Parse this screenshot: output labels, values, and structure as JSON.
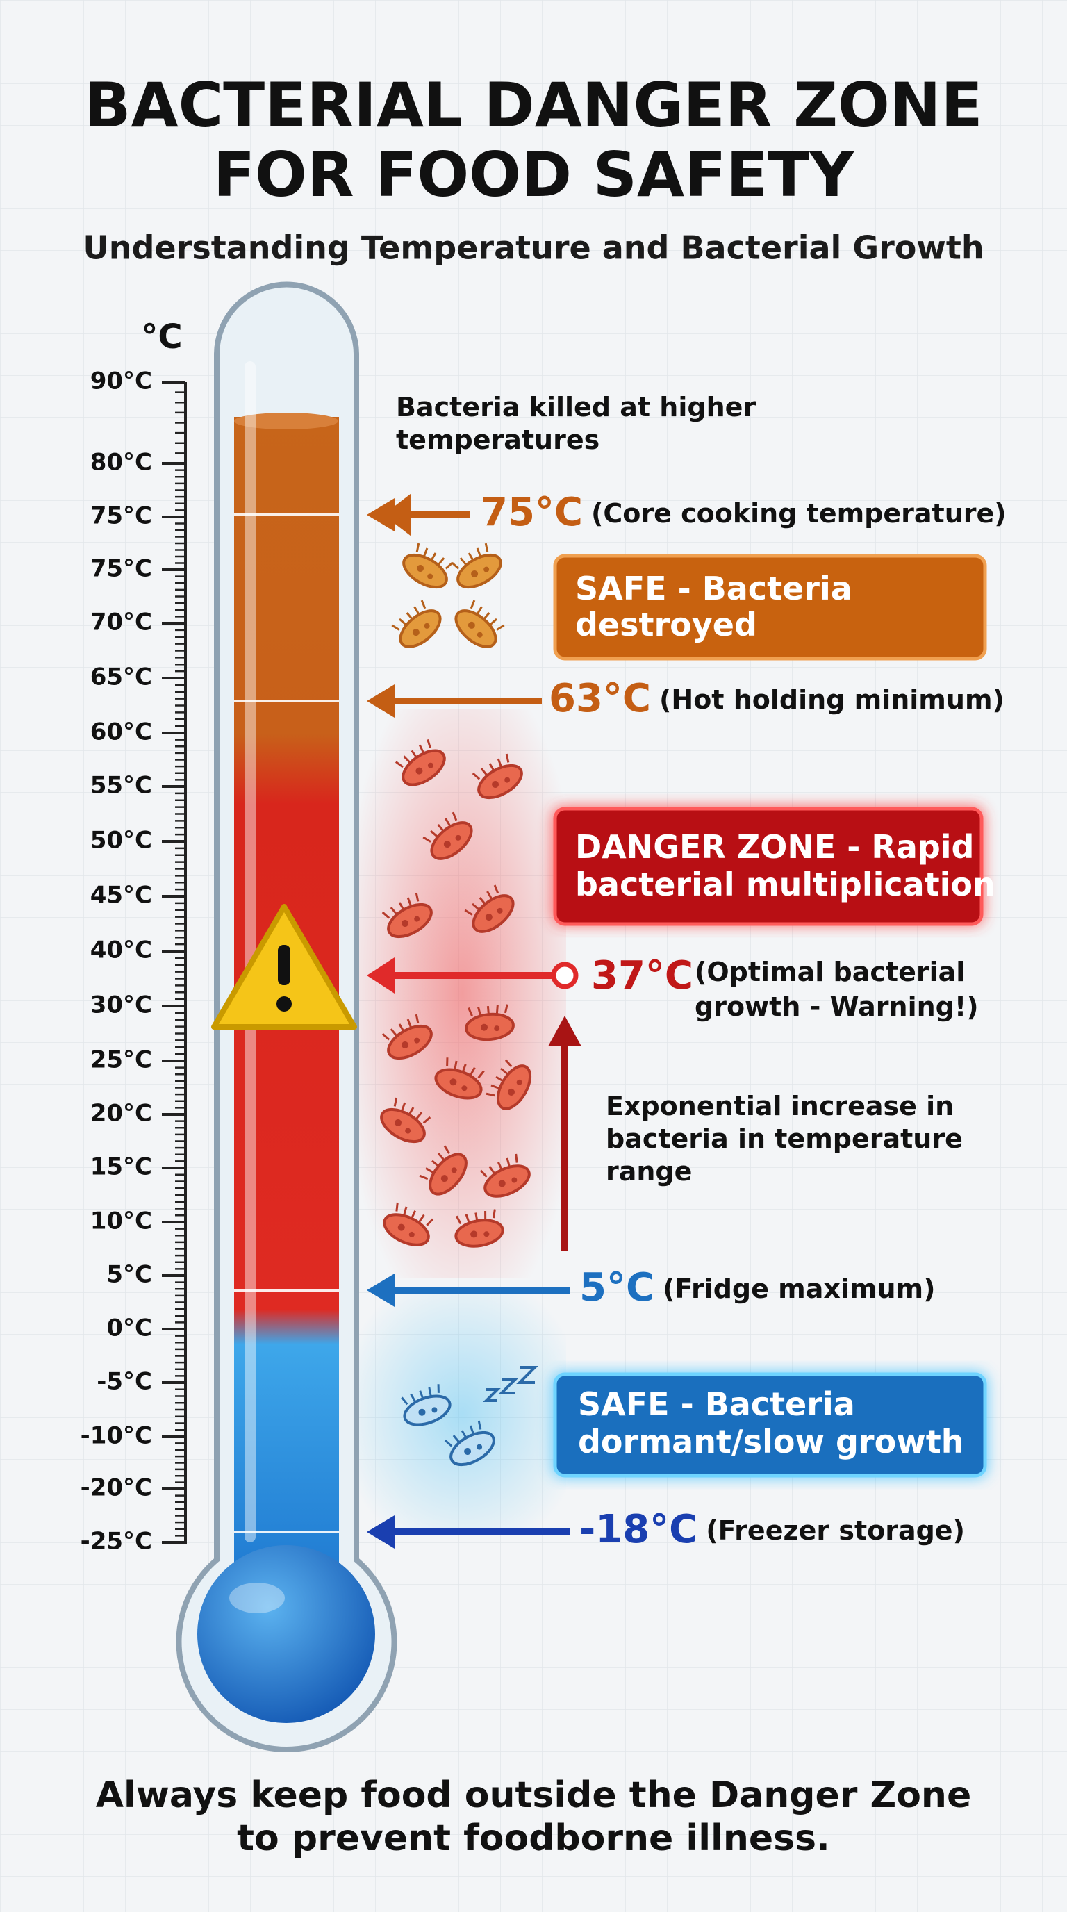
{
  "header": {
    "title": [
      "BACTERIAL DANGER ZONE",
      "FOR FOOD SAFETY"
    ],
    "subtitle": "Understanding Temperature and Bacterial Growth"
  },
  "scale": {
    "unit": "°C",
    "labels": [
      "90°C",
      "80°C",
      "75°C",
      "75°C",
      "70°C",
      "65°C",
      "60°C",
      "55°C",
      "50°C",
      "45°C",
      "40°C",
      "30°C",
      "25°C",
      "20°C",
      "15°C",
      "10°C",
      "5°C",
      "0°C",
      "-5°C",
      "-10°C",
      "-20°C",
      "-25°C"
    ]
  },
  "top_note": [
    "Bacteria killed at higher",
    "temperatures"
  ],
  "markers": [
    {
      "temp": "75°C",
      "note": "(Core cooking temperature)"
    },
    {
      "temp": "63°C",
      "note": "(Hot holding minimum)"
    },
    {
      "temp": "37°C",
      "note": [
        "(Optimal bacterial",
        "growth - Warning!)"
      ]
    },
    {
      "temp": "5°C",
      "note": "(Fridge maximum)"
    },
    {
      "temp": "-18°C",
      "note": "(Freezer storage)"
    }
  ],
  "zones": [
    {
      "label": [
        "SAFE - Bacteria",
        "destroyed"
      ]
    },
    {
      "label": [
        "DANGER ZONE - Rapid",
        "bacterial multiplication"
      ]
    },
    {
      "label": [
        "SAFE - Bacteria",
        "dormant/slow growth"
      ]
    }
  ],
  "growth_note": [
    "Exponential increase in",
    "bacteria in temperature",
    "range"
  ],
  "footer": [
    "Always keep food outside the Danger Zone",
    "to prevent foodborne illness."
  ]
}
